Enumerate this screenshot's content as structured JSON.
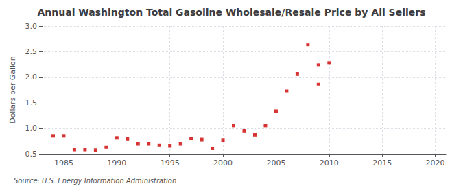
{
  "chart_data": {
    "type": "scatter",
    "title": "Annual Washington Total Gasoline Wholesale/Resale Price by All Sellers",
    "ylabel": "Dollars per Gallon",
    "source": "Source: U.S. Energy Information Administration",
    "x": [
      1984,
      1985,
      1986,
      1987,
      1988,
      1989,
      1990,
      1991,
      1992,
      1993,
      1994,
      1995,
      1996,
      1997,
      1998,
      1999,
      2000,
      2001,
      2002,
      2003,
      2004,
      2005,
      2006,
      2007,
      2008,
      2009,
      2010,
      2009
    ],
    "values": [
      0.85,
      0.85,
      0.58,
      0.58,
      0.57,
      0.63,
      0.81,
      0.79,
      0.7,
      0.7,
      0.67,
      0.66,
      0.7,
      0.8,
      0.78,
      0.6,
      0.77,
      1.05,
      0.95,
      0.87,
      1.05,
      1.33,
      1.73,
      2.06,
      2.63,
      2.24,
      2.28,
      1.86
    ],
    "color": "#cc0000",
    "marker": "square",
    "xlim": [
      1983,
      2021
    ],
    "ylim": [
      0.5,
      3.0
    ],
    "xticks": [
      1985,
      1990,
      1995,
      2000,
      2005,
      2010,
      2015,
      2020
    ],
    "yticks": [
      0.5,
      {
        "value": 1.0,
        "label": "1.0"
      },
      1.5,
      {
        "value": 2.0,
        "label": "2.0"
      },
      2.5,
      {
        "value": 3.0,
        "label": "3.0"
      }
    ],
    "grid": true
  }
}
